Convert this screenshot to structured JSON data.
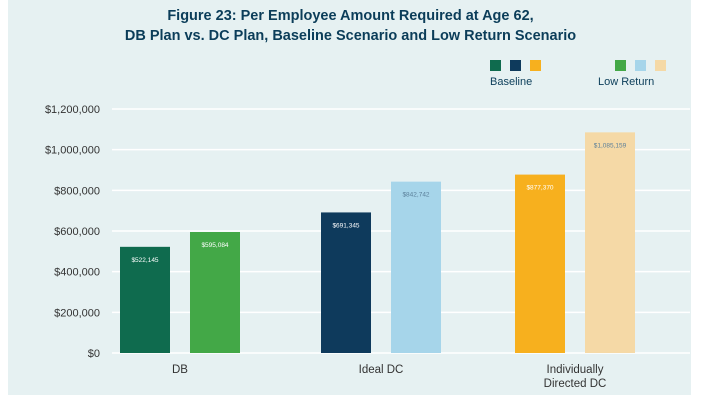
{
  "chart_data": {
    "type": "bar",
    "title_bold": "Figure 23:",
    "title_line1": " Per Employee Amount Required at Age 62,",
    "title_line2": "DB Plan vs. DC Plan, Baseline Scenario and Low Return Scenario",
    "categories": [
      "DB",
      "Ideal DC",
      "Individually Directed DC"
    ],
    "category_lines": [
      [
        "DB"
      ],
      [
        "Ideal DC"
      ],
      [
        "Individually",
        "Directed DC"
      ]
    ],
    "series": [
      {
        "name": "Baseline",
        "values": [
          522145,
          691345,
          877370
        ],
        "labels": [
          "$522,145",
          "$691,345",
          "$877,370"
        ],
        "colors": [
          "#0f6b4e",
          "#0e3a5c",
          "#f7b01e"
        ]
      },
      {
        "name": "Low Return",
        "values": [
          595084,
          842742,
          1085159
        ],
        "labels": [
          "$595,084",
          "$842,742",
          "$1,085,159"
        ],
        "colors": [
          "#43a847",
          "#a6d5ea",
          "#f5d9a6"
        ]
      }
    ],
    "ylim": [
      0,
      1200000
    ],
    "yticks": [
      0,
      200000,
      400000,
      600000,
      800000,
      1000000,
      1200000
    ],
    "ytick_labels": [
      "$0",
      "$200,000",
      "$400,000",
      "$600,000",
      "$800,000",
      "$1,000,000",
      "$1,200,000"
    ],
    "grid": true,
    "legend_position": "top-right",
    "colors": {
      "title": "#0b3d59",
      "axis_text": "#333333",
      "grid": "#ffffff",
      "panel": "#e6f1f2"
    }
  }
}
